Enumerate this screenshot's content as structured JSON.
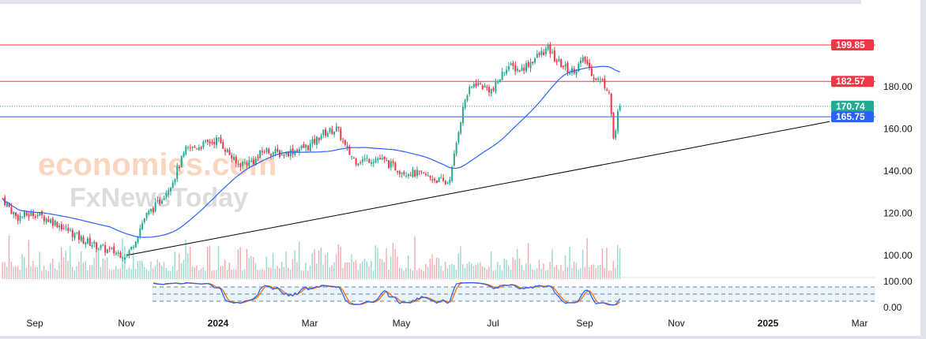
{
  "watermark": {
    "line1": "economies.com",
    "line2": "FxNewsToday"
  },
  "chart_data": {
    "type": "candlestick",
    "price_axis": {
      "ticks": [
        "100.00",
        "120.00",
        "140.00",
        "160.00",
        "180.00"
      ],
      "values": [
        100,
        120,
        140,
        160,
        180
      ],
      "ylim": [
        92,
        205
      ]
    },
    "x_axis": {
      "labels": [
        "Sep",
        "Nov",
        "2024",
        "Mar",
        "May",
        "Jul",
        "Sep",
        "Nov",
        "2025",
        "Mar"
      ],
      "months_from_sep_2023": [
        0,
        2,
        4,
        6,
        8,
        10,
        12,
        14,
        16,
        18
      ]
    },
    "price_path": [
      [
        -0.7,
        127
      ],
      [
        -0.4,
        118
      ],
      [
        0,
        120
      ],
      [
        0.5,
        115
      ],
      [
        1,
        108
      ],
      [
        1.5,
        103
      ],
      [
        2,
        100
      ],
      [
        2.1,
        103
      ],
      [
        2.4,
        118
      ],
      [
        2.7,
        125
      ],
      [
        3.0,
        135
      ],
      [
        3.3,
        150
      ],
      [
        3.6,
        152
      ],
      [
        4.0,
        155
      ],
      [
        4.25,
        148
      ],
      [
        4.4,
        143
      ],
      [
        4.8,
        145
      ],
      [
        5.0,
        150
      ],
      [
        5.4,
        148
      ],
      [
        6.0,
        152
      ],
      [
        6.3,
        158
      ],
      [
        6.6,
        160
      ],
      [
        6.8,
        150
      ],
      [
        7.0,
        145
      ],
      [
        7.5,
        146
      ],
      [
        8.0,
        140
      ],
      [
        8.5,
        138
      ],
      [
        9.0,
        134
      ],
      [
        9.1,
        140
      ],
      [
        9.25,
        160
      ],
      [
        9.4,
        175
      ],
      [
        9.6,
        182
      ],
      [
        10.0,
        178
      ],
      [
        10.3,
        190
      ],
      [
        10.6,
        188
      ],
      [
        11.0,
        195
      ],
      [
        11.2,
        198
      ],
      [
        11.4,
        192
      ],
      [
        11.7,
        187
      ],
      [
        12.0,
        193
      ],
      [
        12.2,
        185
      ],
      [
        12.4,
        182
      ],
      [
        12.55,
        178
      ],
      [
        12.6,
        160
      ],
      [
        12.65,
        152
      ],
      [
        12.7,
        166
      ],
      [
        12.8,
        170.74
      ]
    ],
    "moving_average_period": 50,
    "levels": [
      {
        "value": 199.85,
        "label": "199.85",
        "color": "#f23645"
      },
      {
        "value": 182.57,
        "label": "182.57",
        "color": "#f23645"
      },
      {
        "value": 170.74,
        "label": "170.74",
        "color": "#22ab94",
        "style": "dotted"
      },
      {
        "value": 165.75,
        "label": "165.75",
        "color": "#2962ff"
      }
    ],
    "trendline": {
      "from": [
        2.0,
        100
      ],
      "to": [
        17.35,
        163.5
      ],
      "color": "#000000"
    },
    "stochastic": {
      "ticks": [
        "100.00",
        "0.00"
      ],
      "upper": 80,
      "lower": 20,
      "k_color": "#2962ff",
      "d_color": "#ff6d00"
    },
    "colors": {
      "up": "#22ab94",
      "down": "#f23645",
      "ma": "#2962ff"
    }
  }
}
